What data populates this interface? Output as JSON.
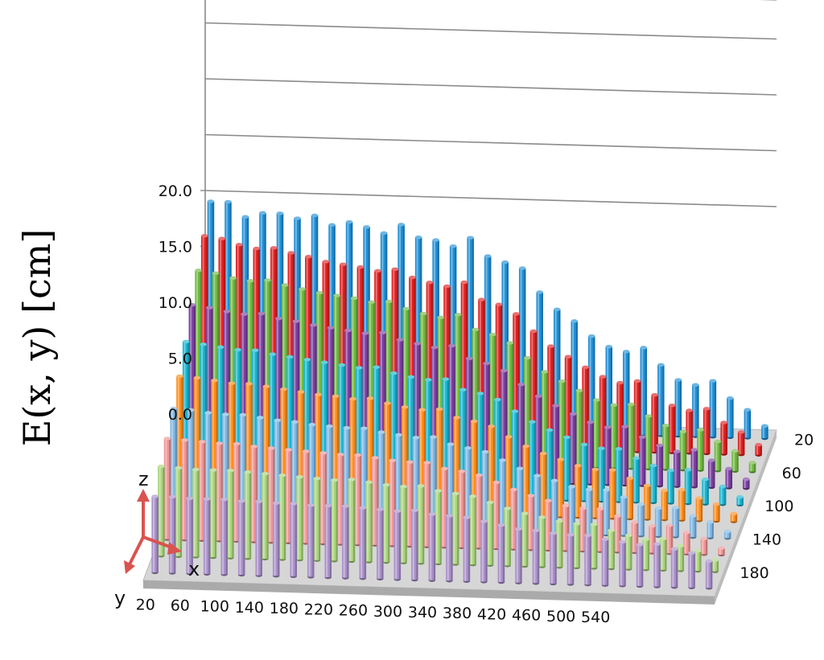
{
  "chart_data": {
    "type": "bar3d",
    "title": "",
    "zlabel": "E(x, y) [cm]",
    "zlim": [
      0,
      20
    ],
    "z_ticks": [
      "0.0",
      "5.0",
      "10.0",
      "15.0",
      "20.0"
    ],
    "x_tick_labels": [
      "20",
      "60",
      "100",
      "140",
      "180",
      "220",
      "260",
      "300",
      "340",
      "380",
      "420",
      "460",
      "500",
      "540"
    ],
    "y_tick_labels": [
      "20",
      "60",
      "100",
      "140",
      "180"
    ],
    "grid": true,
    "legend": "none",
    "series": [
      {
        "y": 20,
        "color": "#1f8fd6",
        "values": [
          19.8,
          19.8,
          18.5,
          18.9,
          18.9,
          18.5,
          18.8,
          18.0,
          18.3,
          17.9,
          17.4,
          18.2,
          17.1,
          16.9,
          16.4,
          17.2,
          15.6,
          15.1,
          14.6,
          12.5,
          11.0,
          10.0,
          8.7,
          7.8,
          7.4,
          7.8,
          6.3,
          5.0,
          4.6,
          5.0,
          3.5,
          2.5,
          1.1
        ]
      },
      {
        "y": 40,
        "color": "#e02020",
        "values": [
          18.2,
          18.0,
          17.5,
          17.2,
          17.3,
          16.9,
          16.6,
          16.2,
          16.0,
          15.8,
          15.5,
          15.7,
          15.0,
          14.6,
          14.3,
          14.7,
          13.2,
          12.8,
          12.0,
          10.5,
          9.2,
          8.3,
          7.4,
          6.6,
          6.1,
          6.3,
          5.1,
          4.2,
          3.8,
          4.0,
          2.8,
          2.0,
          0.9
        ]
      },
      {
        "y": 60,
        "color": "#6fb83f",
        "values": [
          16.6,
          16.4,
          16.0,
          15.8,
          15.9,
          15.5,
          15.2,
          14.9,
          14.7,
          14.5,
          14.2,
          14.3,
          13.7,
          13.3,
          13.0,
          13.3,
          12.0,
          11.6,
          10.9,
          9.6,
          8.4,
          7.6,
          6.8,
          6.0,
          5.6,
          5.7,
          4.7,
          3.9,
          3.4,
          3.6,
          2.6,
          1.8,
          0.8
        ]
      },
      {
        "y": 80,
        "color": "#7b3fa0",
        "values": [
          15.0,
          14.8,
          14.5,
          14.3,
          14.4,
          14.0,
          13.8,
          13.5,
          13.3,
          13.1,
          12.9,
          13.0,
          12.4,
          12.1,
          11.8,
          12.0,
          10.9,
          10.5,
          9.9,
          8.7,
          7.7,
          6.9,
          6.2,
          5.5,
          5.1,
          5.2,
          4.3,
          3.6,
          3.1,
          3.3,
          2.4,
          1.7,
          0.8
        ]
      },
      {
        "y": 100,
        "color": "#17b5d0",
        "values": [
          13.2,
          13.0,
          12.8,
          12.6,
          12.6,
          12.3,
          12.1,
          11.9,
          11.7,
          11.5,
          11.3,
          11.4,
          10.9,
          10.6,
          10.4,
          10.5,
          9.6,
          9.3,
          8.8,
          7.8,
          6.9,
          6.2,
          5.6,
          5.0,
          4.7,
          4.7,
          3.9,
          3.3,
          2.9,
          3.0,
          2.2,
          1.6,
          0.7
        ]
      },
      {
        "y": 120,
        "color": "#ff8c1a",
        "values": [
          11.6,
          11.5,
          11.3,
          11.1,
          11.1,
          10.9,
          10.7,
          10.5,
          10.3,
          10.2,
          10.0,
          10.1,
          9.7,
          9.4,
          9.2,
          9.3,
          8.6,
          8.3,
          7.9,
          7.0,
          6.2,
          5.6,
          5.1,
          4.6,
          4.3,
          4.3,
          3.6,
          3.0,
          2.6,
          2.7,
          2.0,
          1.5,
          0.7
        ]
      },
      {
        "y": 140,
        "color": "#7eb6e4",
        "values": [
          10.2,
          10.1,
          9.9,
          9.8,
          9.8,
          9.6,
          9.4,
          9.3,
          9.1,
          9.0,
          8.9,
          8.9,
          8.6,
          8.4,
          8.2,
          8.3,
          7.7,
          7.4,
          7.1,
          6.4,
          5.7,
          5.1,
          4.7,
          4.2,
          4.0,
          4.0,
          3.4,
          2.8,
          2.5,
          2.6,
          1.9,
          1.4,
          0.6
        ]
      },
      {
        "y": 160,
        "color": "#ef9494",
        "values": [
          9.0,
          8.9,
          8.8,
          8.7,
          8.7,
          8.5,
          8.4,
          8.3,
          8.2,
          8.1,
          8.0,
          8.0,
          7.8,
          7.6,
          7.5,
          7.5,
          7.0,
          6.8,
          6.5,
          5.9,
          5.3,
          4.8,
          4.4,
          4.0,
          3.8,
          3.8,
          3.2,
          2.7,
          2.4,
          2.5,
          1.9,
          1.4,
          0.6
        ]
      },
      {
        "y": 180,
        "color": "#a9d47b",
        "values": [
          8.0,
          7.9,
          7.8,
          7.8,
          7.8,
          7.7,
          7.6,
          7.5,
          7.4,
          7.3,
          7.2,
          7.3,
          7.1,
          6.9,
          6.8,
          6.9,
          6.5,
          6.3,
          6.1,
          5.6,
          5.1,
          4.7,
          4.4,
          4.1,
          3.9,
          3.9,
          3.4,
          3.0,
          2.7,
          2.8,
          2.2,
          1.8,
          1.0
        ]
      },
      {
        "y": 200,
        "color": "#a88fc9",
        "values": [
          6.8,
          6.8,
          6.7,
          6.7,
          6.7,
          6.6,
          6.6,
          6.5,
          6.5,
          6.4,
          6.4,
          6.4,
          6.3,
          6.2,
          6.1,
          6.2,
          5.9,
          5.8,
          5.7,
          5.4,
          5.1,
          4.8,
          4.7,
          4.5,
          4.4,
          4.4,
          4.1,
          3.9,
          3.7,
          3.8,
          3.4,
          3.1,
          2.4
        ]
      }
    ]
  },
  "axis_indicator": {
    "z": "z",
    "x": "x",
    "y": "y",
    "color": "#d9534f"
  }
}
